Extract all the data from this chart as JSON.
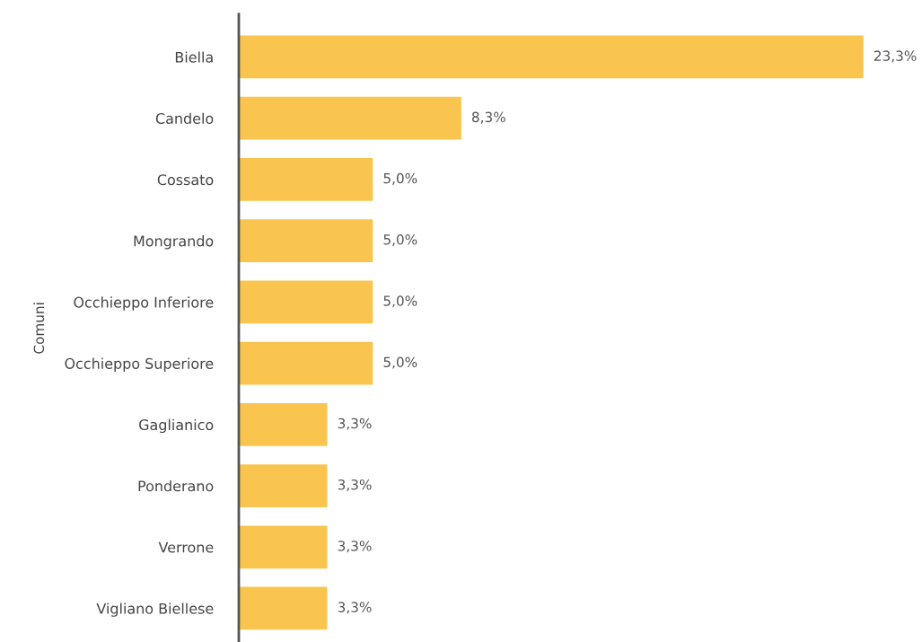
{
  "chart_data": {
    "type": "bar",
    "orientation": "horizontal",
    "ylabel": "Comuni",
    "categories": [
      "Biella",
      "Candelo",
      "Cossato",
      "Mongrando",
      "Occhieppo Inferiore",
      "Occhieppo Superiore",
      "Gaglianico",
      "Ponderano",
      "Verrone",
      "Vigliano Biellese"
    ],
    "values": [
      23.3,
      8.3,
      5.0,
      5.0,
      5.0,
      5.0,
      3.3,
      3.3,
      3.3,
      3.3
    ],
    "value_labels": [
      "23,3%",
      "8,3%",
      "5,0%",
      "5,0%",
      "5,0%",
      "5,0%",
      "3,3%",
      "3,3%",
      "3,3%",
      "3,3%"
    ],
    "color": "#f9c54e",
    "grid": false,
    "legend": false,
    "tick_labels": "y"
  }
}
